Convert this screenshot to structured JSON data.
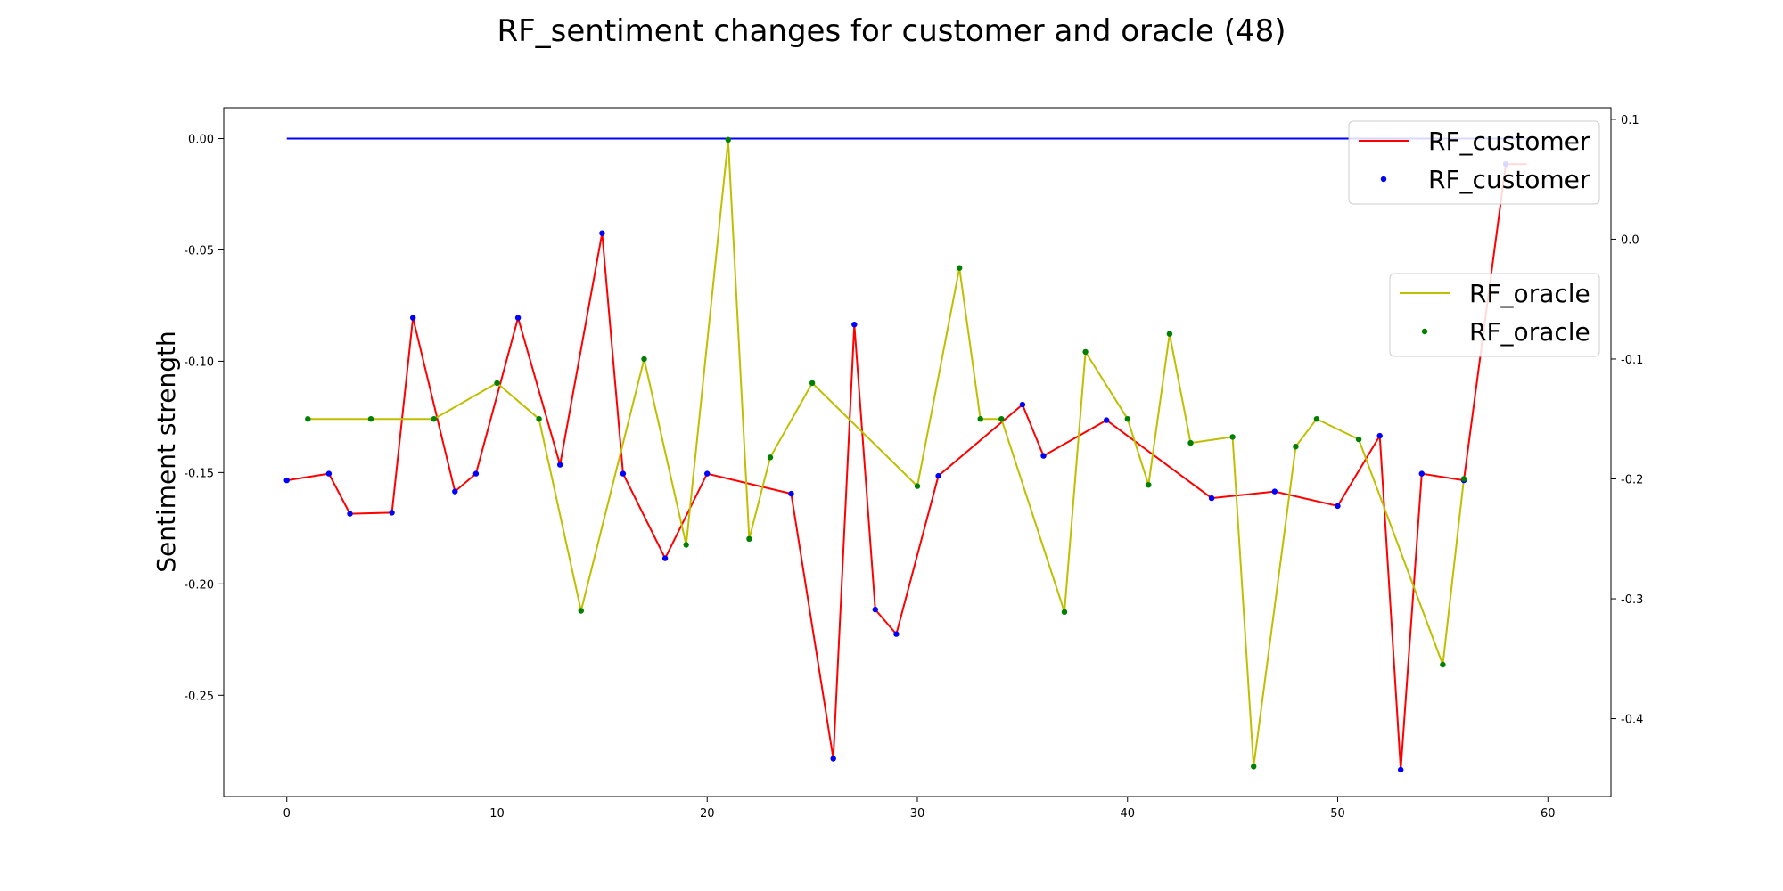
{
  "chart_data": {
    "type": "line",
    "title": "RF_sentiment changes for customer and oracle (48)",
    "ylabel": "Sentiment strength",
    "xlim": [
      -3,
      63
    ],
    "xticks": [
      0,
      10,
      20,
      30,
      40,
      50,
      60
    ],
    "ylim_left": [
      -0.2955,
      0.0138
    ],
    "yticks_left": [
      0.0,
      -0.05,
      -0.1,
      -0.15,
      -0.2,
      -0.25
    ],
    "ytick_labels_left": [
      "0.00",
      "-0.05",
      "-0.10",
      "-0.15",
      "-0.20",
      "-0.25"
    ],
    "ylim_right": [
      -0.465,
      0.1096
    ],
    "yticks_right": [
      0.1,
      0.0,
      -0.1,
      -0.2,
      -0.3,
      -0.4
    ],
    "ytick_labels_right": [
      "0.1",
      "0.0",
      "-0.1",
      "-0.2",
      "-0.3",
      "-0.4"
    ],
    "baseline": {
      "axis": "left",
      "color": "#0000ff",
      "x": [
        0,
        59
      ],
      "y": [
        0.0,
        0.0
      ]
    },
    "series": [
      {
        "name": "RF_customer",
        "axis": "left",
        "line_color": "#ff0000",
        "marker_color": "#0000ff",
        "markers": [
          0,
          1,
          2,
          3,
          4,
          5,
          6,
          7,
          8,
          9,
          10,
          11,
          12,
          13,
          14,
          15,
          16,
          17,
          18,
          19,
          20,
          21,
          22,
          23,
          24,
          25,
          26,
          27,
          28,
          29,
          30,
          31,
          32,
          33,
          34
        ],
        "x": [
          0,
          2,
          3,
          5,
          6,
          8,
          9,
          11,
          13,
          15,
          16,
          18,
          20,
          24,
          26,
          27,
          28,
          29,
          31,
          35,
          36,
          39,
          44,
          47,
          50,
          52,
          53,
          54,
          56,
          58,
          59
        ],
        "y": [
          -0.1535,
          -0.1505,
          -0.1685,
          -0.168,
          -0.0805,
          -0.1585,
          -0.1505,
          -0.0805,
          -0.1465,
          -0.0425,
          -0.1505,
          -0.1885,
          -0.1505,
          -0.1595,
          -0.2785,
          -0.0835,
          -0.2115,
          -0.2225,
          -0.1515,
          -0.1195,
          -0.1425,
          -0.1265,
          -0.1615,
          -0.1585,
          -0.165,
          -0.1335,
          -0.2835,
          -0.1505,
          -0.1535,
          -0.0115,
          -0.0115
        ]
      },
      {
        "name": "RF_oracle",
        "axis": "right",
        "line_color": "#bfbf00",
        "marker_color": "#008000",
        "x": [
          1,
          4,
          7,
          10,
          12,
          14,
          17,
          19,
          21,
          22,
          23,
          25,
          30,
          32,
          33,
          34,
          37,
          38,
          40,
          41,
          42,
          43,
          45,
          46,
          48,
          49,
          51,
          55,
          56
        ],
        "y": [
          -0.15,
          -0.15,
          -0.15,
          -0.12,
          -0.15,
          -0.31,
          -0.1,
          -0.255,
          0.083,
          -0.25,
          -0.182,
          -0.12,
          -0.206,
          -0.024,
          -0.15,
          -0.15,
          -0.311,
          -0.094,
          -0.15,
          -0.205,
          -0.079,
          -0.17,
          -0.165,
          -0.44,
          -0.173,
          -0.15,
          -0.167,
          -0.355,
          -0.2
        ]
      }
    ],
    "legends": [
      {
        "position": "top-right",
        "entries": [
          {
            "label": "RF_customer",
            "kind": "line",
            "color": "#ff0000"
          },
          {
            "label": "RF_customer",
            "kind": "marker",
            "color": "#0000ff"
          }
        ]
      },
      {
        "position": "right",
        "entries": [
          {
            "label": "RF_oracle",
            "kind": "line",
            "color": "#bfbf00"
          },
          {
            "label": "RF_oracle",
            "kind": "marker",
            "color": "#008000"
          }
        ]
      }
    ],
    "grid": false
  }
}
